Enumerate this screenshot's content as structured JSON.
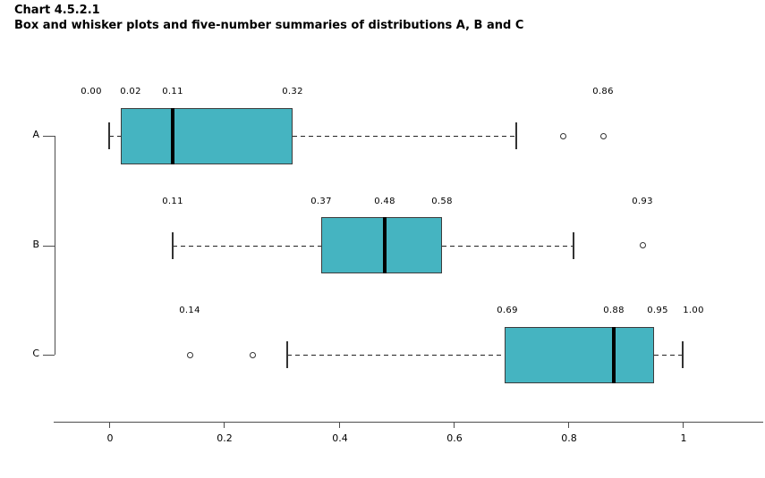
{
  "title": "Chart 4.5.2.1",
  "subtitle": "Box and whisker plots and five-number summaries of distributions A, B and C",
  "colors": {
    "box_fill": "#45b4c1",
    "box_border": "#3c3c3c",
    "line": "#333333",
    "axis": "#4d4d4d",
    "text": "#000000"
  },
  "chart_data": {
    "type": "boxplot",
    "orientation": "horizontal",
    "title": "Chart 4.5.2.1",
    "subtitle": "Box and whisker plots and five-number summaries of distributions A, B and C",
    "xlim": [
      0,
      1
    ],
    "x_ticks": [
      0,
      0.2,
      0.4,
      0.6,
      0.8,
      1
    ],
    "x_tick_labels": [
      "0",
      "0.2",
      "0.4",
      "0.6",
      "0.8",
      "1"
    ],
    "grid": false,
    "series": [
      {
        "name": "A",
        "five_number_summary": {
          "min": 0.0,
          "q1": 0.02,
          "median": 0.11,
          "q3": 0.32,
          "max": 0.86
        },
        "q1": 0.02,
        "median": 0.11,
        "q3": 0.32,
        "whisker_low": 0.0,
        "whisker_high": 0.71,
        "outliers": [
          0.79,
          0.86
        ],
        "labels": [
          {
            "text": "0.00",
            "v": 0.0,
            "dx": -20
          },
          {
            "text": "0.02",
            "v": 0.02,
            "dx": 11
          },
          {
            "text": "0.11",
            "v": 0.11,
            "dx": 0
          },
          {
            "text": "0.32",
            "v": 0.32,
            "dx": 0
          },
          {
            "text": "0.86",
            "v": 0.86,
            "dx": 0
          }
        ]
      },
      {
        "name": "B",
        "five_number_summary": {
          "min": 0.11,
          "q1": 0.37,
          "median": 0.48,
          "q3": 0.58,
          "max": 0.93
        },
        "q1": 0.37,
        "median": 0.48,
        "q3": 0.58,
        "whisker_low": 0.11,
        "whisker_high": 0.81,
        "outliers": [
          0.93
        ],
        "labels": [
          {
            "text": "0.11",
            "v": 0.11,
            "dx": 0
          },
          {
            "text": "0.37",
            "v": 0.37,
            "dx": 0
          },
          {
            "text": "0.48",
            "v": 0.48,
            "dx": 0
          },
          {
            "text": "0.58",
            "v": 0.58,
            "dx": 0
          },
          {
            "text": "0.93",
            "v": 0.93,
            "dx": 0
          }
        ]
      },
      {
        "name": "C",
        "five_number_summary": {
          "min": 0.14,
          "q1": 0.69,
          "median": 0.88,
          "q3": 0.95,
          "max": 1.0
        },
        "q1": 0.69,
        "median": 0.88,
        "q3": 0.95,
        "whisker_low": 0.31,
        "whisker_high": 1.0,
        "outliers": [
          0.14,
          0.25
        ],
        "labels": [
          {
            "text": "0.14",
            "v": 0.14,
            "dx": 0
          },
          {
            "text": "0.69",
            "v": 0.69,
            "dx": 3
          },
          {
            "text": "0.88",
            "v": 0.88,
            "dx": 0
          },
          {
            "text": "0.95",
            "v": 0.95,
            "dx": 4
          },
          {
            "text": "1.00",
            "v": 1.0,
            "dx": 12
          }
        ]
      }
    ]
  }
}
